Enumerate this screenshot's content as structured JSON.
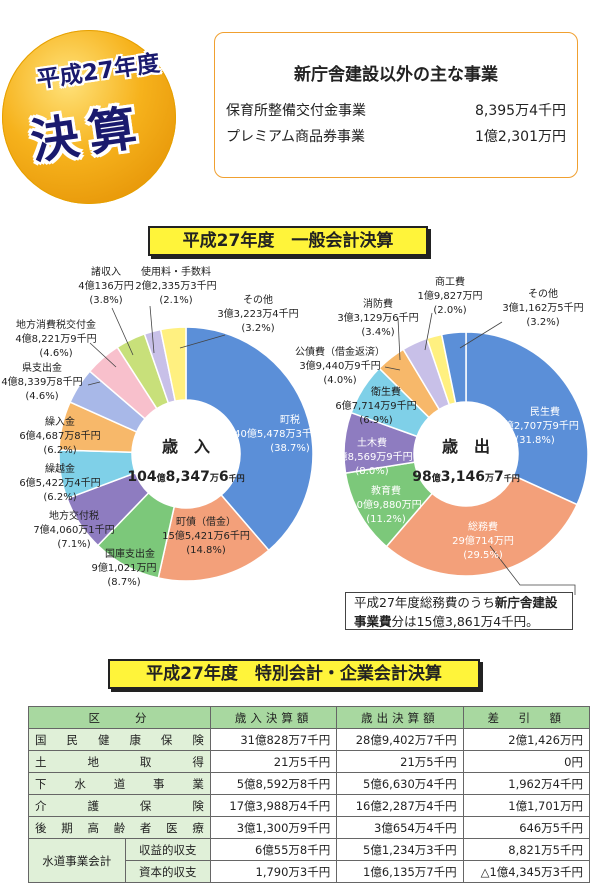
{
  "badge": {
    "year": "平成27年度",
    "title": "決算"
  },
  "top_box": {
    "title": "新庁舎建設以外の主な事業",
    "rows": [
      {
        "name": "保育所整備交付金事業",
        "amount": "8,395万4千円"
      },
      {
        "name": "プレミアム商品券事業",
        "amount": "1億2,301万円"
      }
    ]
  },
  "general_title": "平成27年度　一般会計決算",
  "special_title": "平成27年度　特別会計・企業会計決算",
  "revenue_center": {
    "label": "歳　入",
    "total_a": "104",
    "unit_a": "億",
    "total_b": "8,347",
    "unit_b": "万",
    "total_c": "6",
    "unit_c": "千円"
  },
  "expense_center": {
    "label": "歳　出",
    "total_a": "98",
    "unit_a": "億",
    "total_b": "3,146",
    "unit_b": "万",
    "total_c": "7",
    "unit_c": "千円"
  },
  "note": {
    "text_a": "平成27年度総務費のうち",
    "text_b": "新庁舎建設",
    "text_c": "事業費",
    "text_d": "分は15億3,861万4千円。"
  },
  "colors": {
    "revenue": [
      "#5b8fd8",
      "#f3a07a",
      "#7cc87a",
      "#8e7cc0",
      "#7fd0e8",
      "#f7b86a",
      "#a8b8e8",
      "#f8c0cc",
      "#c8e07a",
      "#c8c0e8",
      "#fff080"
    ],
    "expense": [
      "#5b8fd8",
      "#f3a07a",
      "#7cc87a",
      "#8e7cc0",
      "#7fd0e8",
      "#f7b86a",
      "#c8c0e8",
      "#fff080"
    ]
  },
  "chart_data": [
    {
      "type": "pie",
      "title": "歳入",
      "categories": [
        "町税",
        "町債（借金）",
        "国庫支出金",
        "地方交付税",
        "繰越金",
        "繰入金",
        "県支出金",
        "地方消費税交付金",
        "諸収入",
        "使用料・手数料",
        "その他"
      ],
      "amounts": [
        "40億5,478万3千円",
        "15億5,421万6千円",
        "9億1,021万円",
        "7億4,060万1千円",
        "6億5,422万4千円",
        "6億4,687万8千円",
        "4億8,339万8千円",
        "4億8,221万9千円",
        "4億136万円",
        "2億2,335万3千円",
        "3億3,223万4千円"
      ],
      "values": [
        38.7,
        14.8,
        8.7,
        7.1,
        6.2,
        6.2,
        4.6,
        4.6,
        3.8,
        2.1,
        3.2
      ],
      "percent_labels": [
        "(38.7%)",
        "(14.8%)",
        "(8.7%)",
        "(7.1%)",
        "(6.2%)",
        "(6.2%)",
        "(4.6%)",
        "(4.6%)",
        "(3.8%)",
        "(2.1%)",
        "(3.2%)"
      ]
    },
    {
      "type": "pie",
      "title": "歳出",
      "categories": [
        "民生費",
        "総務費",
        "教育費",
        "土木費",
        "衛生費",
        "公債費（借金返済）",
        "消防費",
        "商工費",
        "その他"
      ],
      "amounts": [
        "31億2,707万9千円",
        "29億714万円",
        "10億9,880万円",
        "7億8,569万9千円",
        "6億7,714万9千円",
        "3億9,440万9千円",
        "3億3,129万6千円",
        "1億9,827万円",
        "3億1,162万5千円"
      ],
      "values": [
        31.8,
        29.5,
        11.2,
        8.0,
        6.9,
        4.0,
        3.4,
        2.0,
        3.2
      ],
      "percent_labels": [
        "(31.8%)",
        "(29.5%)",
        "(11.2%)",
        "(8.0%)",
        "(6.9%)",
        "(4.0%)",
        "(3.4%)",
        "(2.0%)",
        "(3.2%)"
      ]
    }
  ],
  "table": {
    "headers": [
      "区　　分",
      "歳入決算額",
      "歳出決算額",
      "差　引　額"
    ],
    "rows": [
      {
        "name": "国民健康保険",
        "sub": "",
        "rev": "31億828万7千円",
        "exp": "28億9,402万7千円",
        "diff": "2億1,426万円"
      },
      {
        "name": "土地取得",
        "sub": "",
        "rev": "21万5千円",
        "exp": "21万5千円",
        "diff": "0円"
      },
      {
        "name": "下水道事業",
        "sub": "",
        "rev": "5億8,592万8千円",
        "exp": "5億6,630万4千円",
        "diff": "1,962万4千円"
      },
      {
        "name": "介護保険",
        "sub": "",
        "rev": "17億3,988万4千円",
        "exp": "16億2,287万4千円",
        "diff": "1億1,701万円"
      },
      {
        "name": "後期高齢者医療",
        "sub": "",
        "rev": "3億1,300万9千円",
        "exp": "3億654万4千円",
        "diff": "646万5千円"
      },
      {
        "name": "水道事業会計",
        "sub": "収益的収支",
        "rev": "6億55万8千円",
        "exp": "5億1,234万3千円",
        "diff": "8,821万5千円"
      },
      {
        "name": "",
        "sub": "資本的収支",
        "rev": "1,790万3千円",
        "exp": "1億6,135万7千円",
        "diff": "△1億4,345万3千円"
      }
    ]
  }
}
